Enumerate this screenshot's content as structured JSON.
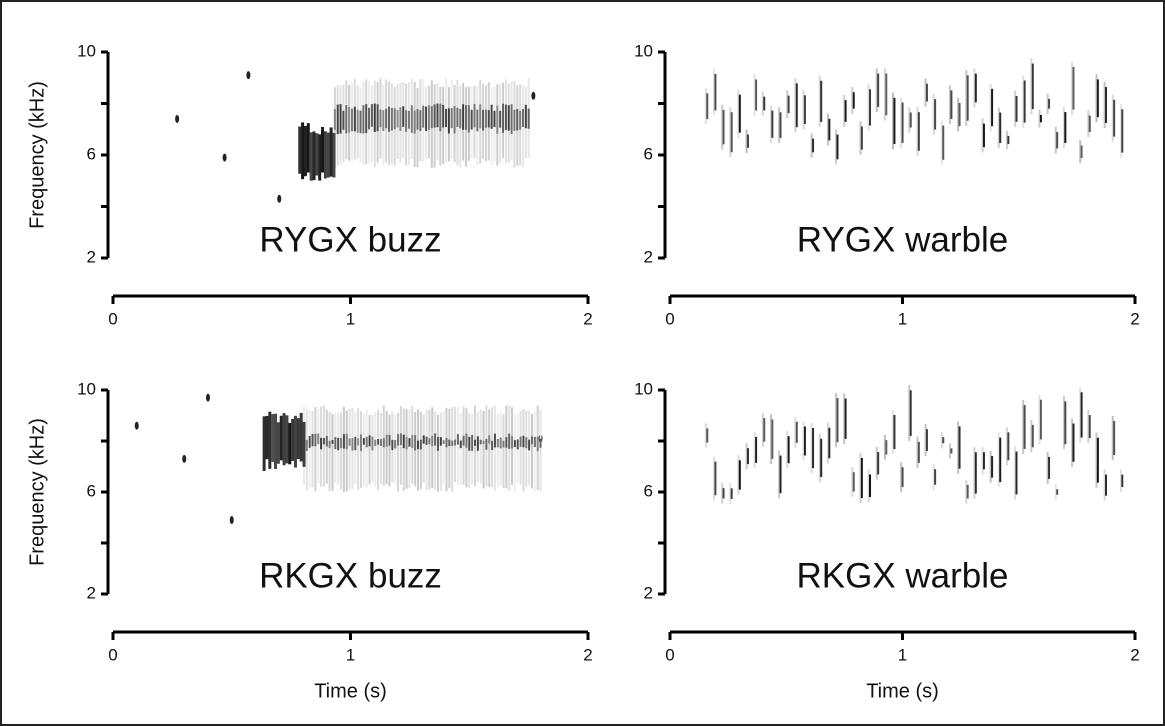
{
  "chart_data": [
    {
      "type": "spectrogram",
      "title": "RYGX buzz",
      "ylabel": "Frequency (kHz)",
      "xlim": [
        0,
        2
      ],
      "xticks": [
        0,
        1,
        2
      ],
      "ylim": [
        2,
        10
      ],
      "yticks": [
        2,
        6,
        10
      ],
      "yminorticks": [
        4,
        8
      ]
    },
    {
      "type": "spectrogram",
      "title": "RYGX warble",
      "xlim": [
        0,
        2
      ],
      "xticks": [
        0,
        1,
        2
      ],
      "ylim": [
        2,
        10
      ],
      "yticks": [
        2,
        6,
        10
      ],
      "yminorticks": [
        4,
        8
      ]
    },
    {
      "type": "spectrogram",
      "title": "RKGX buzz",
      "ylabel": "Frequency (kHz)",
      "xlabel": "Time (s)",
      "xlim": [
        0,
        2
      ],
      "xticks": [
        0,
        1,
        2
      ],
      "ylim": [
        2,
        10
      ],
      "yticks": [
        2,
        6,
        10
      ],
      "yminorticks": [
        4,
        8
      ]
    },
    {
      "type": "spectrogram",
      "title": "RKGX warble",
      "xlabel": "Time (s)",
      "xlim": [
        0,
        2
      ],
      "xticks": [
        0,
        1,
        2
      ],
      "ylim": [
        2,
        10
      ],
      "yticks": [
        2,
        6,
        10
      ],
      "yminorticks": [
        4,
        8
      ]
    }
  ]
}
